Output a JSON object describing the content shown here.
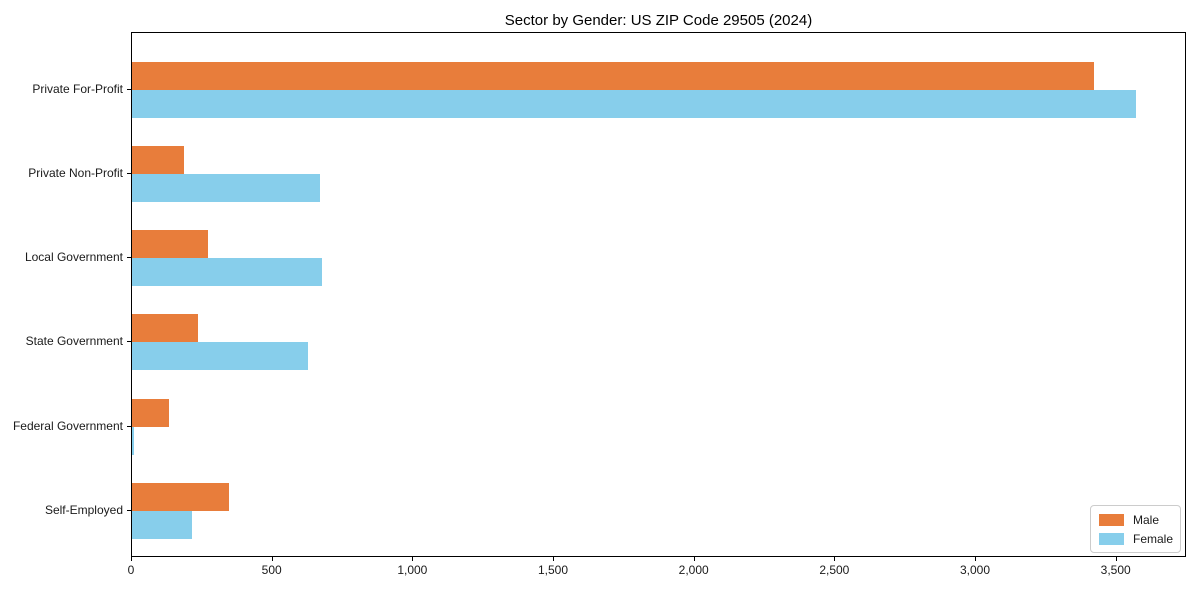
{
  "title": "Sector by Gender: US ZIP Code 29505 (2024)",
  "colors": {
    "male": "#e87d3b",
    "female": "#87ceeb",
    "spine": "#000000",
    "text": "#1a1a1a",
    "legend_border": "#cccccc",
    "background": "#ffffff"
  },
  "chart_data": {
    "type": "bar",
    "orientation": "horizontal",
    "title": "Sector by Gender: US ZIP Code 29505 (2024)",
    "categories": [
      "Private For-Profit",
      "Private Non-Profit",
      "Local Government",
      "State Government",
      "Federal Government",
      "Self-Employed"
    ],
    "series": [
      {
        "name": "Male",
        "color": "#e87d3b",
        "values": [
          3420,
          185,
          270,
          235,
          130,
          345
        ]
      },
      {
        "name": "Female",
        "color": "#87ceeb",
        "values": [
          3570,
          670,
          675,
          625,
          8,
          215
        ]
      }
    ],
    "xlabel": "",
    "ylabel": "",
    "xlim": [
      0,
      3750
    ],
    "xticks": [
      0,
      500,
      1000,
      1500,
      2000,
      2500,
      3000,
      3500
    ],
    "xtick_labels": [
      "0",
      "500",
      "1,000",
      "1,500",
      "2,000",
      "2,500",
      "3,000",
      "3,500"
    ],
    "grid": false,
    "legend": {
      "position": "lower right",
      "entries": [
        {
          "label": "Male",
          "color": "#e87d3b"
        },
        {
          "label": "Female",
          "color": "#87ceeb"
        }
      ]
    }
  }
}
